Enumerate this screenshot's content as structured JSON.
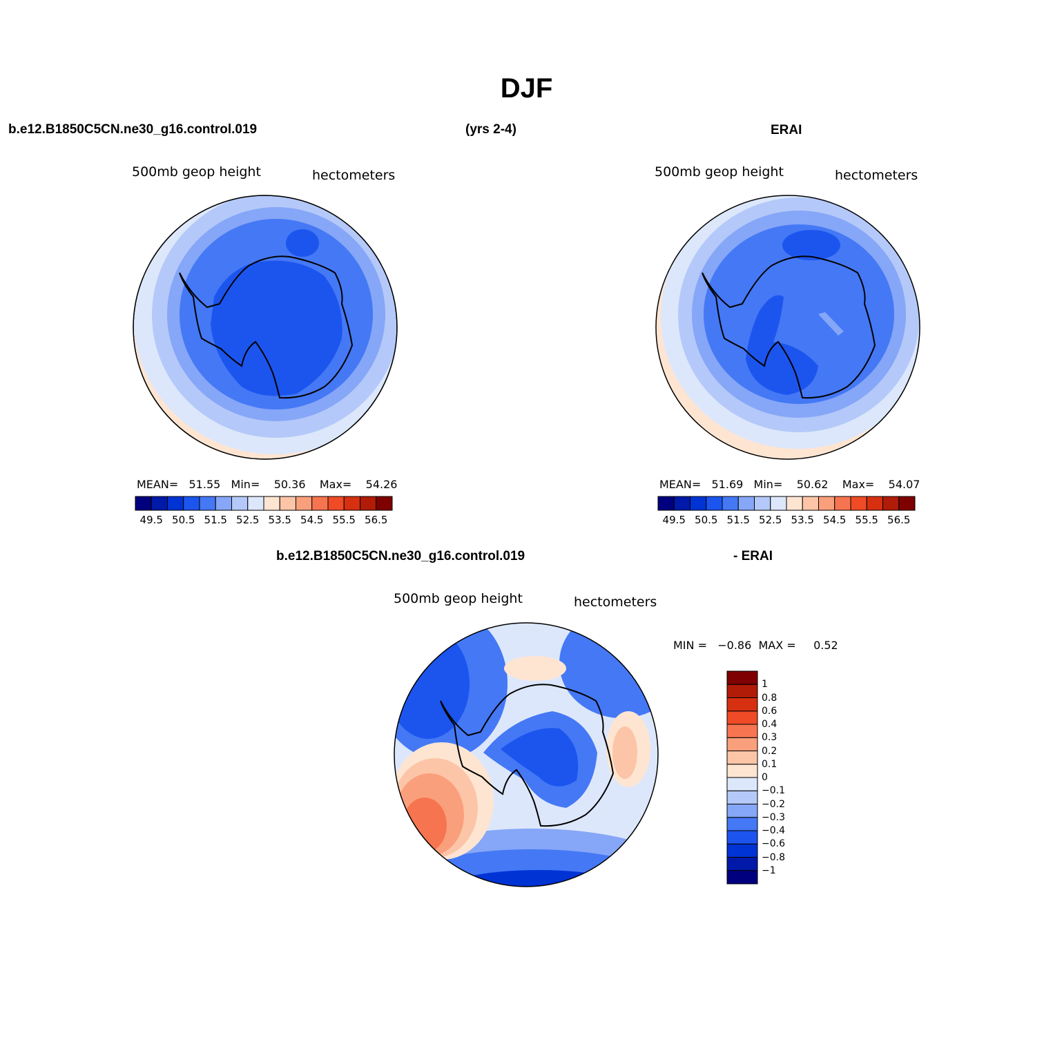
{
  "figure": {
    "title": "DJF",
    "case_name": "b.e12.B1850C5CN.ne30_g16.control.019",
    "years": "(yrs 2-4)",
    "obs_name": "ERAI",
    "diff_case_name": "b.e12.B1850C5CN.ne30_g16.control.019",
    "diff_obs_name": "- ERAI"
  },
  "panels": {
    "model": {
      "variable": "500mb geop height",
      "units": "hectometers",
      "stats": "MEAN=   51.55   Min=    50.36    Max=    54.26"
    },
    "obs": {
      "variable": "500mb geop height",
      "units": "hectometers",
      "stats": "MEAN=   51.69   Min=    50.62    Max=    54.07"
    },
    "diff": {
      "variable": "500mb geop height",
      "units": "hectometers",
      "stats": "MIN =   −0.86  MAX =     0.52"
    }
  },
  "colorbars": {
    "abs": {
      "colors": [
        "#00007f",
        "#0019a8",
        "#0033d4",
        "#1c55ee",
        "#4478f5",
        "#86a6f7",
        "#b4c9f9",
        "#dce7fb",
        "#fee5d2",
        "#fcc5a8",
        "#fa9f7c",
        "#f67550",
        "#ee4b26",
        "#d63010",
        "#b01c08",
        "#7f0000"
      ],
      "labels": [
        "49.5",
        "50.5",
        "51.5",
        "52.5",
        "53.5",
        "54.5",
        "55.5",
        "56.5"
      ]
    },
    "diff": {
      "colors_bottom_to_top": [
        "#00007f",
        "#0019a8",
        "#0033d4",
        "#1c55ee",
        "#4478f5",
        "#86a6f7",
        "#b4c9f9",
        "#dce7fb",
        "#fee5d2",
        "#fcc5a8",
        "#fa9f7c",
        "#f67550",
        "#ee4b26",
        "#d63010",
        "#b01c08",
        "#7f0000"
      ],
      "labels_top_to_bottom": [
        "1",
        "0.8",
        "0.6",
        "0.4",
        "0.3",
        "0.2",
        "0.1",
        "0",
        "−0.1",
        "−0.2",
        "−0.3",
        "−0.4",
        "−0.6",
        "−0.8",
        "−1"
      ]
    }
  },
  "map_colors": {
    "deep_blue": "#1c55ee",
    "blue": "#4478f5",
    "light_blue": "#86a6f7",
    "pale_blue": "#b4c9f9",
    "very_pale_blue": "#dce7fb",
    "pale_orange": "#fee5d2",
    "light_orange": "#fcc5a8",
    "orange": "#fa9f7c",
    "dark_orange": "#f67550",
    "red_orange": "#ee4b26",
    "darker_blue": "#0033d4"
  }
}
